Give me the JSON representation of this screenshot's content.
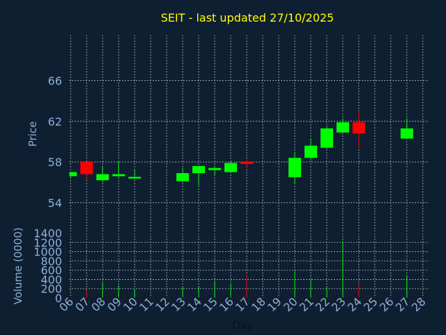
{
  "chart_data": {
    "type": "candlestick",
    "title": "SEIT - last updated 27/10/2025",
    "price_panel": {
      "ylabel": "Price",
      "yticks": [
        54,
        58,
        62,
        66
      ],
      "ylim": [
        51,
        70.5
      ],
      "grid": true
    },
    "volume_panel": {
      "ylabel": "Volume (0000)",
      "yticks": [
        0,
        200,
        400,
        600,
        800,
        1000,
        1200,
        1400
      ],
      "ylim": [
        0,
        1400
      ],
      "grid": true
    },
    "xlabel": "Day",
    "xticks": [
      "06",
      "07",
      "08",
      "09",
      "10",
      "11",
      "12",
      "13",
      "14",
      "15",
      "16",
      "17",
      "18",
      "19",
      "20",
      "21",
      "22",
      "23",
      "24",
      "25",
      "26",
      "27",
      "28"
    ],
    "colors": {
      "up": "#00ff00",
      "down": "#ff0000",
      "background": "#0f1f32",
      "grid": "#b0b8c0"
    },
    "candles": [
      {
        "day": 6,
        "open": 56.6,
        "high": 57.0,
        "low": 56.5,
        "close": 57.0,
        "volume": 0
      },
      {
        "day": 7,
        "open": 58.0,
        "high": 58.0,
        "low": 56.2,
        "close": 56.8,
        "volume": 180
      },
      {
        "day": 8,
        "open": 56.2,
        "high": 57.6,
        "low": 56.0,
        "close": 56.8,
        "volume": 330
      },
      {
        "day": 9,
        "open": 56.6,
        "high": 58.0,
        "low": 56.5,
        "close": 56.8,
        "volume": 270
      },
      {
        "day": 10,
        "open": 56.4,
        "high": 57.3,
        "low": 56.3,
        "close": 56.5,
        "volume": 180
      },
      {
        "day": 13,
        "open": 56.1,
        "high": 57.4,
        "low": 56.0,
        "close": 56.9,
        "volume": 230
      },
      {
        "day": 14,
        "open": 56.9,
        "high": 57.6,
        "low": 55.7,
        "close": 57.6,
        "volume": 260
      },
      {
        "day": 15,
        "open": 57.2,
        "high": 57.6,
        "low": 56.7,
        "close": 57.4,
        "volume": 360
      },
      {
        "day": 16,
        "open": 57.0,
        "high": 58.0,
        "low": 57.0,
        "close": 57.9,
        "volume": 320
      },
      {
        "day": 17,
        "open": 58.0,
        "high": 58.2,
        "low": 57.5,
        "close": 57.8,
        "volume": 490
      },
      {
        "day": 20,
        "open": 56.5,
        "high": 59.0,
        "low": 55.9,
        "close": 58.4,
        "volume": 580
      },
      {
        "day": 21,
        "open": 58.4,
        "high": 60.3,
        "low": 58.2,
        "close": 59.6,
        "volume": 400
      },
      {
        "day": 22,
        "open": 59.4,
        "high": 61.5,
        "low": 59.3,
        "close": 61.3,
        "volume": 230
      },
      {
        "day": 23,
        "open": 60.9,
        "high": 62.3,
        "low": 60.9,
        "close": 61.9,
        "volume": 1230
      },
      {
        "day": 24,
        "open": 61.9,
        "high": 62.9,
        "low": 59.3,
        "close": 60.8,
        "volume": 330
      },
      {
        "day": 27,
        "open": 60.3,
        "high": 62.3,
        "low": 60.3,
        "close": 61.3,
        "volume": 500
      }
    ]
  }
}
